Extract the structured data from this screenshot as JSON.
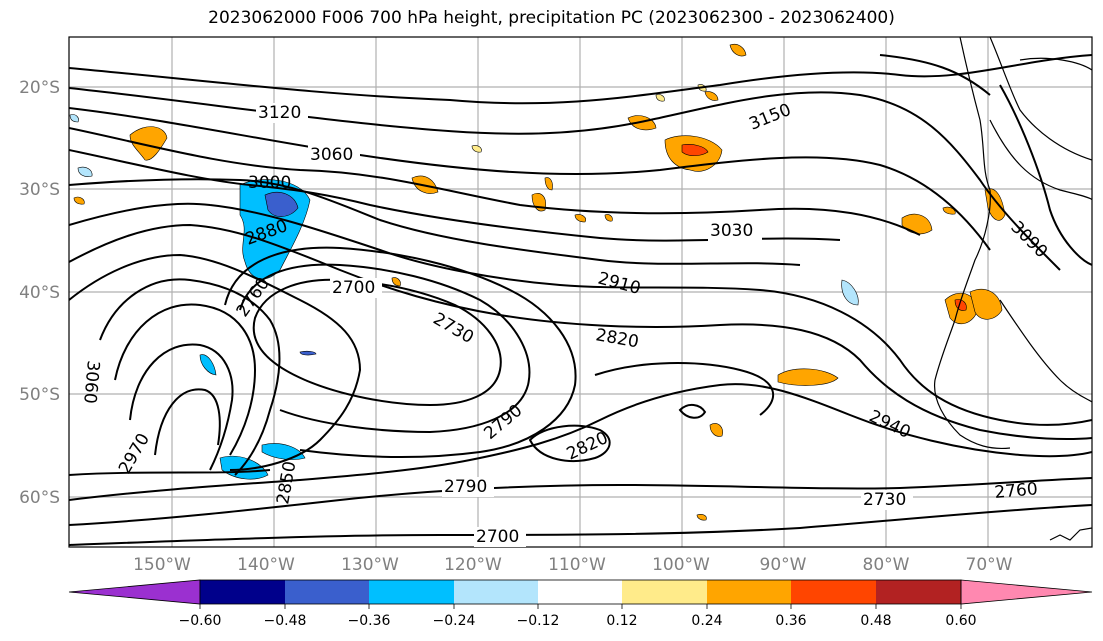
{
  "title": "2023062000 F006 700 hPa height, precipitation PC (2023062300 - 2023062400)",
  "lat_labels": [
    "20°S",
    "30°S",
    "40°S",
    "50°S",
    "60°S"
  ],
  "lon_labels": [
    "150°W",
    "140°W",
    "130°W",
    "120°W",
    "110°W",
    "100°W",
    "90°W",
    "80°W",
    "70°W"
  ],
  "contour_labels": [
    "3120",
    "3060",
    "3000",
    "2880",
    "2760",
    "2700",
    "2730",
    "2790",
    "2820",
    "2850",
    "2970",
    "3060",
    "3150",
    "3030",
    "2910",
    "2820",
    "2940",
    "2790",
    "2700",
    "2730",
    "2760",
    "3090"
  ],
  "colorbar": {
    "ticks": [
      "−0.60",
      "−0.48",
      "−0.36",
      "−0.24",
      "−0.12",
      "0.12",
      "0.24",
      "0.36",
      "0.48",
      "0.60"
    ],
    "colors": [
      "#9b30d0",
      "#00008b",
      "#3a5fcd",
      "#00bfff",
      "#b3e5fc",
      "#ffffff",
      "#ffeb8a",
      "#ffa500",
      "#ff4500",
      "#b22222",
      "#ff88b0"
    ]
  }
}
